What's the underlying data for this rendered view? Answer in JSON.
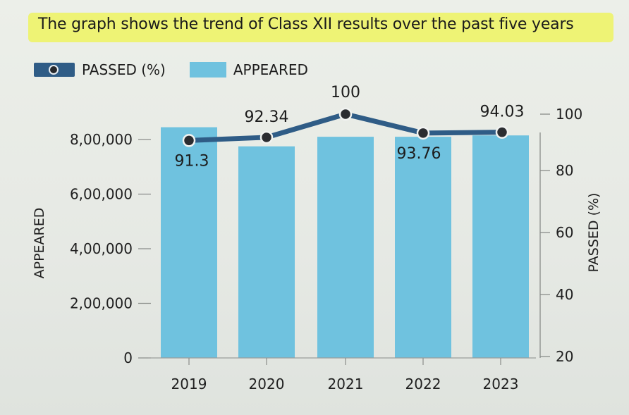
{
  "title": "The graph shows the trend of Class XII results over the past five years",
  "colors": {
    "bar": "#6fc2df",
    "line": "#2f5c86",
    "marker": "#2b2d31",
    "highlight": "#eef36a"
  },
  "chart_data": {
    "type": "bar",
    "title": "The graph shows the trend of Class XII results over the past five years",
    "categories": [
      "2019",
      "2020",
      "2021",
      "2022",
      "2023"
    ],
    "series": [
      {
        "name": "APPEARED",
        "type": "bar",
        "axis": "left",
        "values": [
          845000,
          775000,
          810000,
          810000,
          815000
        ]
      },
      {
        "name": "PASSED (%)",
        "type": "line",
        "axis": "right",
        "values": [
          91.3,
          92.34,
          100,
          93.76,
          94.03
        ],
        "labels": [
          "91.3",
          "92.34",
          "100",
          "93.76",
          "94.03"
        ]
      }
    ],
    "left_axis": {
      "label": "APPEARED",
      "range": [
        0,
        800000
      ],
      "ticks": [
        0,
        200000,
        400000,
        600000,
        800000
      ],
      "tick_labels": [
        "0",
        "2,00,000",
        "4,00,000",
        "6,00,000",
        "8,00,000"
      ]
    },
    "right_axis": {
      "label": "PASSED (%)",
      "range": [
        20,
        100
      ],
      "ticks": [
        20,
        40,
        60,
        80,
        100
      ],
      "tick_labels": [
        "20",
        "40",
        "60",
        "80",
        "100"
      ]
    },
    "legend": [
      {
        "name": "PASSED (%)",
        "kind": "line"
      },
      {
        "name": "APPEARED",
        "kind": "bar"
      }
    ],
    "legend_position": "top-left"
  }
}
